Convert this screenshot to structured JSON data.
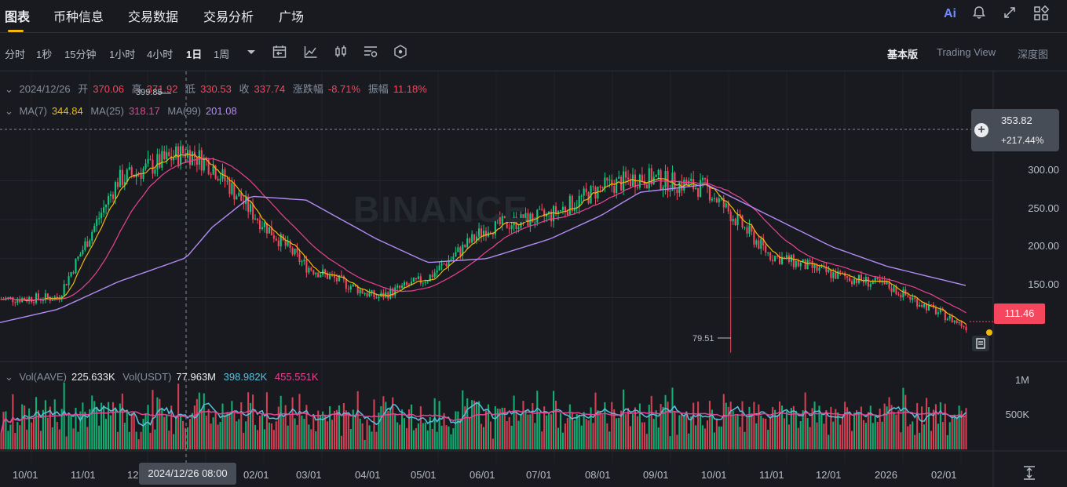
{
  "nav": {
    "tabs": [
      "图表",
      "币种信息",
      "交易数据",
      "交易分析",
      "广场"
    ],
    "icons": [
      "ai-icon",
      "bell-icon",
      "expand-icon",
      "apps-icon"
    ],
    "ai_label": "Ai"
  },
  "toolbar": {
    "intervals": [
      "分时",
      "1秒",
      "15分钟",
      "1小时",
      "4小时",
      "1日",
      "1周"
    ],
    "active_interval": "1日",
    "views": [
      "基本版",
      "Trading View",
      "深度图"
    ],
    "active_view": "基本版"
  },
  "ohlc": {
    "date": "2024/12/26",
    "open_label": "开",
    "open": "370.06",
    "high_label": "高",
    "high": "371.92",
    "low_label": "低",
    "low": "330.53",
    "close_label": "收",
    "close": "337.74",
    "change_label": "涨跌幅",
    "change": "-8.71%",
    "amp_label": "振幅",
    "amp": "11.18%"
  },
  "ma": {
    "ma7_label": "MA(7)",
    "ma7": "344.84",
    "ma25_label": "MA(25)",
    "ma25": "318.17",
    "ma99_label": "MA(99)",
    "ma99": "201.08"
  },
  "volume_legend": {
    "vol_base_label": "Vol(AAVE)",
    "vol_base": "225.633K",
    "vol_quote_label": "Vol(USDT)",
    "vol_quote": "77.963M",
    "ma1": "398.982K",
    "ma2": "455.551K"
  },
  "price_axis": [
    "300.00",
    "250.00",
    "200.00",
    "150.00"
  ],
  "volume_axis": [
    "1M",
    "500K"
  ],
  "current_price": "111.46",
  "compare": {
    "price": "353.82",
    "change": "+217.44%"
  },
  "annotations": {
    "high": "399.85",
    "low": "79.51"
  },
  "time_axis": [
    "10/01",
    "11/01",
    "12",
    "02/01",
    "03/01",
    "04/01",
    "05/01",
    "06/01",
    "07/01",
    "08/01",
    "09/01",
    "10/01",
    "11/01",
    "12/01",
    "2026",
    "02/01"
  ],
  "crosshair_time": "2024/12/26 08:00",
  "watermark": "BINANCE",
  "colors": {
    "up": "#0ecb81",
    "down": "#f6465d",
    "ma7": "#f0b90b",
    "ma25": "#e84393",
    "ma99": "#b38bf5",
    "accent": "#f0b90b"
  },
  "chart_data": {
    "type": "candlestick",
    "x": [
      "2024/10/01",
      "2024/11/01",
      "2024/12/01",
      "2024/12/26",
      "2025/01/01",
      "2025/02/01",
      "2025/03/01",
      "2025/04/01",
      "2025/05/01",
      "2025/06/01",
      "2025/07/01",
      "2025/08/01",
      "2025/09/01",
      "2025/10/01",
      "2025/11/01",
      "2025/12/01",
      "2026/01/01",
      "2026/02/01"
    ],
    "close": [
      148,
      150,
      300,
      337.74,
      320,
      260,
      190,
      150,
      175,
      240,
      255,
      290,
      305,
      290,
      205,
      180,
      165,
      111.46
    ],
    "ma99": [
      118,
      135,
      170,
      201.08,
      240,
      280,
      275,
      225,
      195,
      200,
      225,
      255,
      285,
      295,
      255,
      215,
      190,
      165
    ],
    "ylim": [
      70,
      420
    ],
    "yticks": [
      150,
      200,
      250,
      300
    ]
  }
}
